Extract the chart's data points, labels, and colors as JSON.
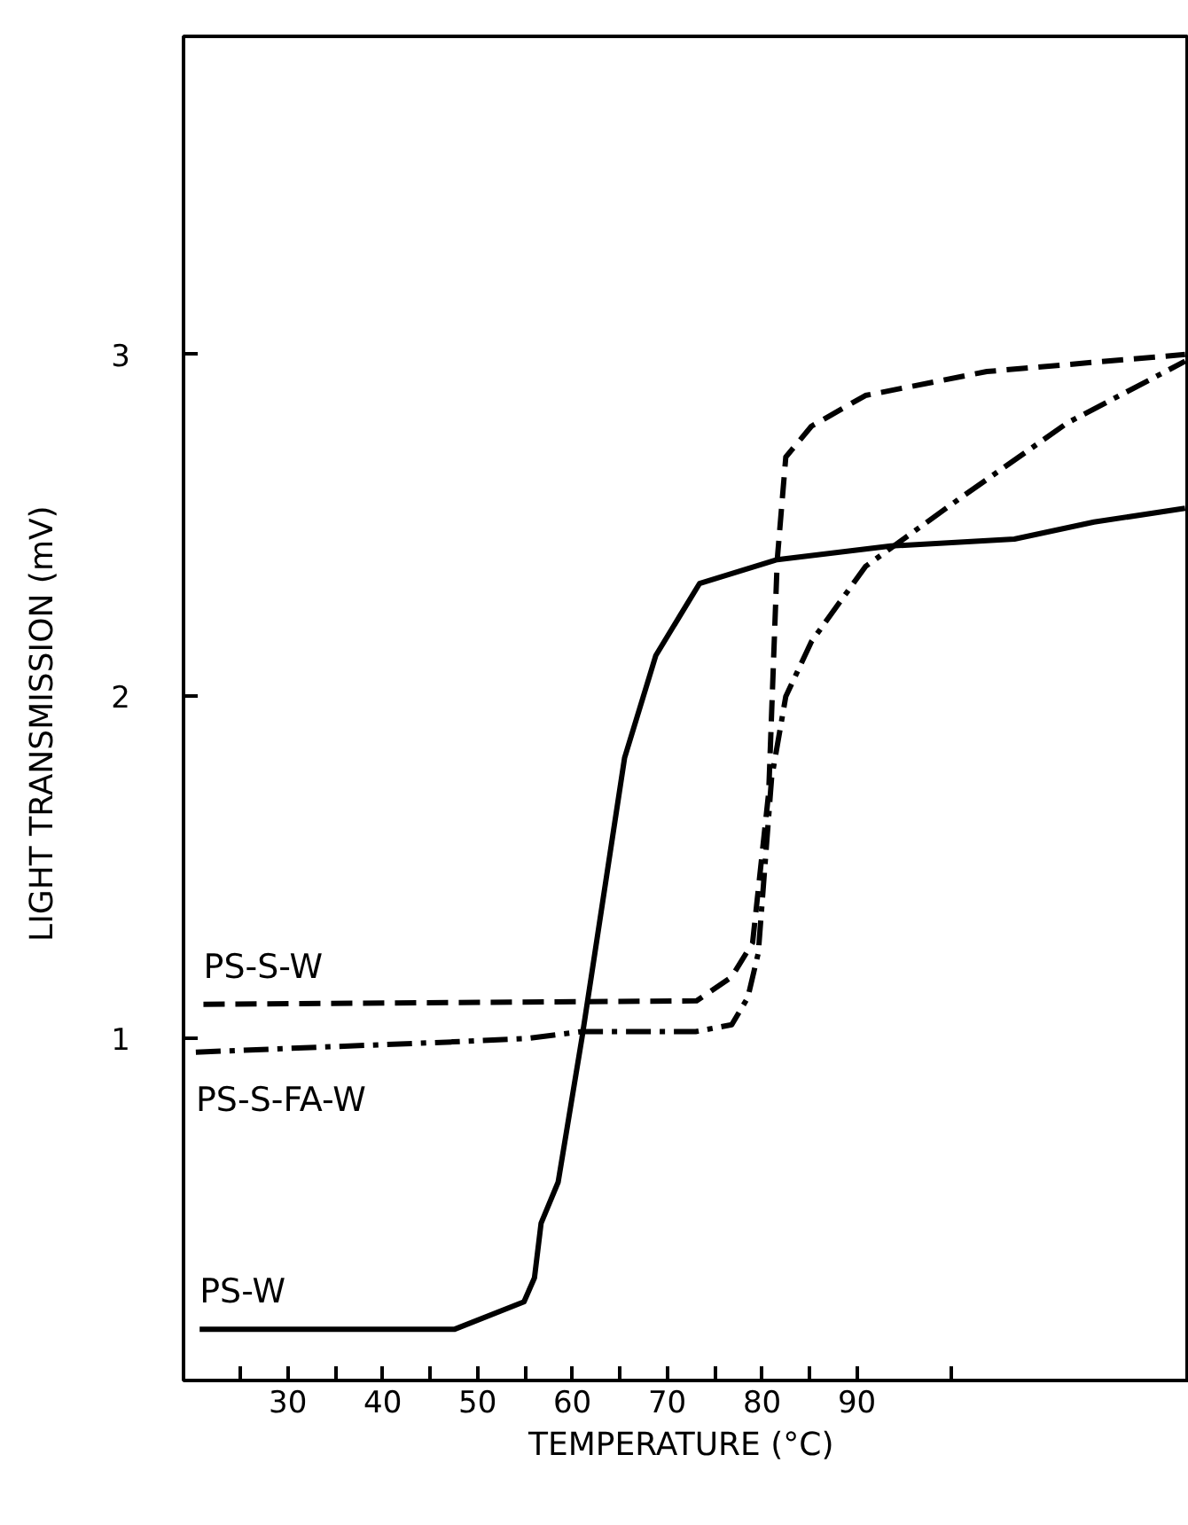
{
  "chart_data": {
    "type": "line",
    "xlabel": "TEMPERATURE  (°C)",
    "ylabel": "LIGHT  TRANSMISSION   (mV)",
    "xlim": [
      19,
      125
    ],
    "ylim": [
      0,
      3.93
    ],
    "xticks": [
      {
        "value": 25,
        "label": null
      },
      30,
      {
        "value": 35,
        "label": null
      },
      40,
      {
        "value": 45,
        "label": null
      },
      50,
      {
        "value": 55,
        "label": null
      },
      60,
      {
        "value": 65,
        "label": null
      },
      70,
      {
        "value": 75,
        "label": null
      },
      80,
      {
        "value": 85,
        "label": null
      },
      90,
      {
        "value": 100,
        "label": null
      }
    ],
    "yticks": [
      1,
      2,
      3
    ],
    "grid": false,
    "marker": "none",
    "series": [
      {
        "name": "PS-W",
        "color": "#000000",
        "line_style": "solid",
        "x": [
          20.7,
          47.6,
          54.9,
          56,
          56.7,
          58.5,
          61,
          65.5,
          68.8,
          73.4,
          81.6,
          93.6,
          106.6,
          115,
          124.6
        ],
        "values": [
          0.15,
          0.15,
          0.23,
          0.3,
          0.46,
          0.58,
          1.0,
          1.82,
          2.12,
          2.33,
          2.4,
          2.44,
          2.46,
          2.51,
          2.55
        ]
      },
      {
        "name": "PS-S-W",
        "color": "#000000",
        "line_style": "dashed",
        "x": [
          21.1,
          73.1,
          76.8,
          79,
          80.7,
          81.6,
          82.5,
          85.2,
          90.9,
          103.7,
          124.6
        ],
        "values": [
          1.1,
          1.11,
          1.18,
          1.28,
          1.72,
          2.4,
          2.7,
          2.79,
          2.88,
          2.95,
          3.0
        ]
      },
      {
        "name": "PS-S-FA-W",
        "color": "#000000",
        "line_style": "dashdot",
        "x": [
          20.3,
          47.4,
          55.2,
          61,
          73,
          76.8,
          78.5,
          79.6,
          81,
          82.5,
          85.2,
          90.9,
          100.9,
          112.2,
          124.6
        ],
        "values": [
          0.96,
          0.99,
          1.0,
          1.02,
          1.02,
          1.04,
          1.12,
          1.25,
          1.76,
          2.0,
          2.16,
          2.38,
          2.58,
          2.8,
          2.98
        ]
      }
    ]
  }
}
